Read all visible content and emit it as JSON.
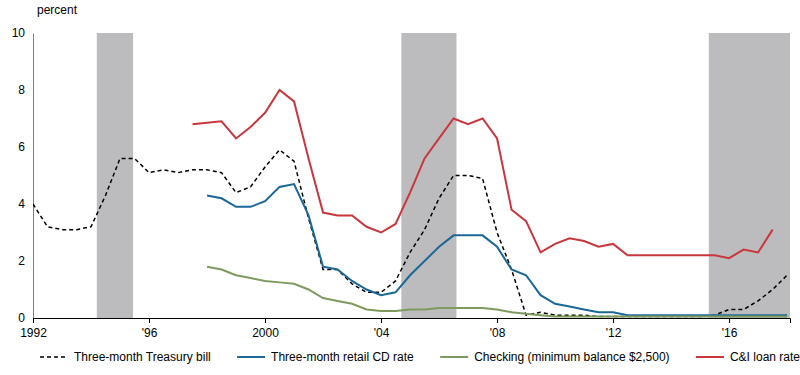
{
  "chart_data": {
    "type": "line",
    "y_label": "percent",
    "x": [
      1992.0,
      1992.5,
      1993.0,
      1993.5,
      1994.0,
      1994.5,
      1995.0,
      1995.5,
      1996.0,
      1996.5,
      1997.0,
      1997.5,
      1998.0,
      1998.5,
      1999.0,
      1999.5,
      2000.0,
      2000.5,
      2001.0,
      2001.5,
      2002.0,
      2002.5,
      2003.0,
      2003.5,
      2004.0,
      2004.5,
      2005.0,
      2005.5,
      2006.0,
      2006.5,
      2007.0,
      2007.5,
      2008.0,
      2008.5,
      2009.0,
      2009.5,
      2010.0,
      2010.5,
      2011.0,
      2011.5,
      2012.0,
      2012.5,
      2013.0,
      2013.5,
      2014.0,
      2014.5,
      2015.0,
      2015.5,
      2016.0,
      2016.5,
      2017.0,
      2017.5,
      2018.0
    ],
    "xlim": [
      1992,
      2018.1
    ],
    "xticks": [
      {
        "value": 1992,
        "label": "1992"
      },
      {
        "value": 1996,
        "label": "'96"
      },
      {
        "value": 2000,
        "label": "2000"
      },
      {
        "value": 2004,
        "label": "'04"
      },
      {
        "value": 2008,
        "label": "'08"
      },
      {
        "value": 2012,
        "label": "'12"
      },
      {
        "value": 2016,
        "label": "'16"
      }
    ],
    "ylim": [
      0,
      10
    ],
    "yticks": [
      0,
      2,
      4,
      6,
      8,
      10
    ],
    "grid": false,
    "legend": "bottom",
    "shaded_periods": [
      [
        1994.2,
        1995.45
      ],
      [
        2004.7,
        2006.6
      ],
      [
        2015.3,
        2018.1
      ]
    ],
    "series": [
      {
        "name": "Three-month Treasury bill",
        "color": "#000000",
        "line_style": "dashed",
        "values": [
          4.0,
          3.2,
          3.1,
          3.1,
          3.2,
          4.3,
          5.6,
          5.6,
          5.1,
          5.2,
          5.1,
          5.2,
          5.2,
          5.1,
          4.4,
          4.6,
          5.3,
          5.9,
          5.5,
          3.5,
          1.7,
          1.7,
          1.2,
          0.9,
          0.9,
          1.3,
          2.3,
          3.1,
          4.2,
          5.0,
          5.0,
          4.9,
          3.0,
          1.7,
          0.1,
          0.2,
          0.1,
          0.1,
          0.1,
          0.05,
          0.05,
          0.05,
          0.05,
          0.05,
          0.05,
          0.05,
          0.05,
          0.1,
          0.3,
          0.3,
          0.6,
          1.0,
          1.5
        ]
      },
      {
        "name": "Three-month retail CD rate",
        "color": "#1b6798",
        "line_style": "solid",
        "values": [
          null,
          null,
          null,
          null,
          null,
          null,
          null,
          null,
          null,
          null,
          null,
          null,
          4.3,
          4.2,
          3.9,
          3.9,
          4.1,
          4.6,
          4.7,
          3.6,
          1.8,
          1.7,
          1.3,
          1.0,
          0.8,
          0.9,
          1.5,
          2.0,
          2.5,
          2.9,
          2.9,
          2.9,
          2.5,
          1.7,
          1.5,
          0.8,
          0.5,
          0.4,
          0.3,
          0.2,
          0.2,
          0.1,
          0.1,
          0.1,
          0.1,
          0.1,
          0.1,
          0.1,
          0.1,
          0.1,
          0.1,
          0.1,
          0.1
        ]
      },
      {
        "name": "Checking (minimum balance $2,500)",
        "color": "#7f9a5e",
        "line_style": "solid",
        "values": [
          null,
          null,
          null,
          null,
          null,
          null,
          null,
          null,
          null,
          null,
          null,
          null,
          1.8,
          1.7,
          1.5,
          1.4,
          1.3,
          1.25,
          1.2,
          1.0,
          0.7,
          0.6,
          0.5,
          0.3,
          0.25,
          0.25,
          0.3,
          0.3,
          0.35,
          0.35,
          0.35,
          0.35,
          0.3,
          0.2,
          0.15,
          0.1,
          0.05,
          0.05,
          0.05,
          0.05,
          0.05,
          0.05,
          0.05,
          0.05,
          0.05,
          0.05,
          0.05,
          0.05,
          0.05,
          0.05,
          0.05,
          0.05,
          0.05
        ]
      },
      {
        "name": "C&I loan rate",
        "color": "#c8373d",
        "line_style": "solid",
        "values": [
          null,
          null,
          null,
          null,
          null,
          null,
          null,
          null,
          null,
          null,
          null,
          6.8,
          6.85,
          6.9,
          6.3,
          6.7,
          7.2,
          8.0,
          7.6,
          5.6,
          3.7,
          3.6,
          3.6,
          3.2,
          3.0,
          3.3,
          4.4,
          5.6,
          6.3,
          7.0,
          6.8,
          7.0,
          6.3,
          3.8,
          3.4,
          2.3,
          2.6,
          2.8,
          2.7,
          2.5,
          2.6,
          2.2,
          2.2,
          2.2,
          2.2,
          2.2,
          2.2,
          2.2,
          2.1,
          2.4,
          2.3,
          3.1,
          null
        ]
      }
    ]
  }
}
